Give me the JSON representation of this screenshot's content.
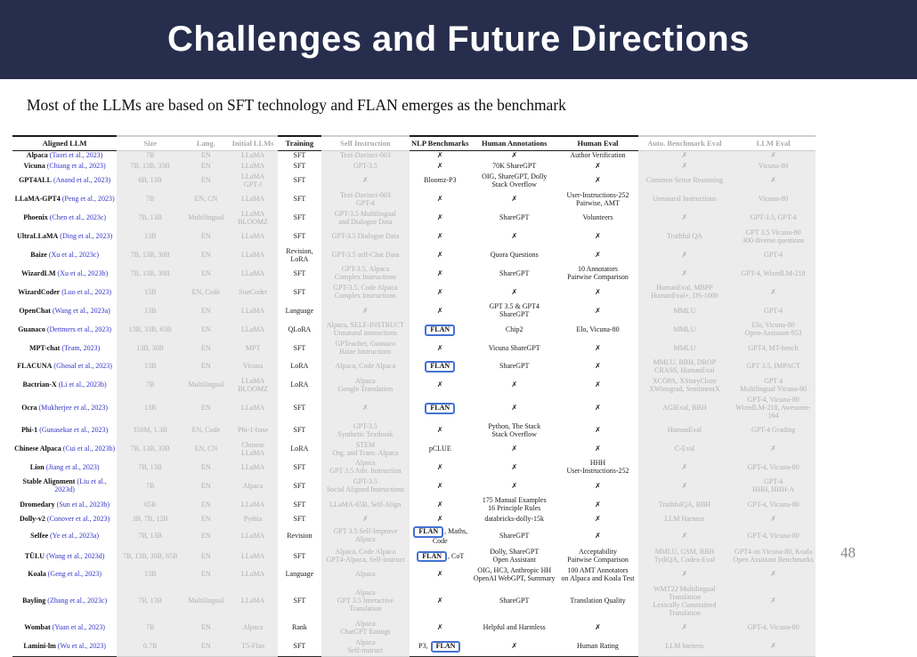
{
  "slide": {
    "title": "Challenges and Future Directions",
    "subtitle": "Most of the LLMs are based on SFT technology and FLAN emerges as the benchmark",
    "page_number": "48",
    "colors": {
      "banner_background": "#272E4D",
      "title_text": "#FFFFFF",
      "citation_blue": "#3434C8",
      "flan_highlight_blue": "#4472D4",
      "dimmed_column_background": "#ECECEC",
      "dimmed_text": "#B0B0B4"
    }
  },
  "table": {
    "columns": [
      {
        "key": "model",
        "label": "Aligned LLM",
        "dim": false,
        "width": "13%"
      },
      {
        "key": "size",
        "label": "Size",
        "dim": true,
        "width": "8.3%"
      },
      {
        "key": "lang",
        "label": "Lang.",
        "dim": true,
        "width": "5.6%"
      },
      {
        "key": "initial",
        "label": "Initial LLMs",
        "dim": true,
        "width": "6.1%"
      },
      {
        "key": "training",
        "label": "Training",
        "dim": false,
        "width": "5.5%"
      },
      {
        "key": "self_instruction",
        "label": "Self Instruction",
        "dim": true,
        "width": "10.9%"
      },
      {
        "key": "nlp",
        "label": "NLP Benchmarks",
        "dim": false,
        "width": "7.7%"
      },
      {
        "key": "human_annotations",
        "label": "Human Annotations",
        "dim": false,
        "width": "10.8%"
      },
      {
        "key": "human_eval",
        "label": "Human Eval",
        "dim": false,
        "width": "10%"
      },
      {
        "key": "auto_benchmark",
        "label": "Auto. Benchmark Eval",
        "dim": true,
        "width": "11.6%"
      },
      {
        "key": "llm_eval",
        "label": "LLM Eval",
        "dim": true,
        "width": "10.5%"
      }
    ],
    "rows": [
      {
        "model": "Alpaca",
        "citation": "(Taori et al., 2023)",
        "size": "7B",
        "lang": "EN",
        "initial": "LLaMA",
        "training": "SFT",
        "self_instruction": "Text-Davinci-003",
        "nlp": {
          "text": "✗"
        },
        "human_annotations": "✗",
        "human_eval": "Author Verification",
        "auto_benchmark": "✗",
        "llm_eval": "✗"
      },
      {
        "model": "Vicuna",
        "citation": "(Chiang et al., 2023)",
        "size": "7B, 13B, 33B",
        "lang": "EN",
        "initial": "LLaMA",
        "training": "SFT",
        "self_instruction": "GPT-3.5",
        "nlp": {
          "text": "✗"
        },
        "human_annotations": "70K ShareGPT",
        "human_eval": "✗",
        "auto_benchmark": "✗",
        "llm_eval": "Vicuna-80"
      },
      {
        "model": "GPT4ALL",
        "citation": "(Anand et al., 2023)",
        "size": "6B, 13B",
        "lang": "EN",
        "initial": "LLaMA\nGPT-J",
        "training": "SFT",
        "self_instruction": "✗",
        "nlp": {
          "text": "Bloomz-P3"
        },
        "human_annotations": "OIG, ShareGPT, Dolly\nStack Overflow",
        "human_eval": "✗",
        "auto_benchmark": "Common Sense Reasoning",
        "llm_eval": "✗"
      },
      {
        "model": "LLaMA-GPT4",
        "citation": "(Peng et al., 2023)",
        "size": "7B",
        "lang": "EN, CN",
        "initial": "LLaMA",
        "training": "SFT",
        "self_instruction": "Text-Davinci-003\nGPT-4",
        "nlp": {
          "text": "✗"
        },
        "human_annotations": "✗",
        "human_eval": "User-Instructions-252\nPairwise, AMT",
        "auto_benchmark": "Unnatural Instructions",
        "llm_eval": "Vicuna-80"
      },
      {
        "model": "Phoenix",
        "citation": "(Chen et al., 2023c)",
        "size": "7B, 13B",
        "lang": "Multilingual",
        "initial": "LLaMA\nBLOOMZ",
        "training": "SFT",
        "self_instruction": "GPT-3.5 Multilingual\nand Dialogue Data",
        "nlp": {
          "text": "✗"
        },
        "human_annotations": "ShareGPT",
        "human_eval": "Volunteers",
        "auto_benchmark": "✗",
        "llm_eval": "GPT-3.5, GPT-4"
      },
      {
        "model": "UltraLLaMA",
        "citation": "(Ding et al., 2023)",
        "size": "13B",
        "lang": "EN",
        "initial": "LLaMA",
        "training": "SFT",
        "self_instruction": "GPT-3.5 Dialogue Data",
        "nlp": {
          "text": "✗"
        },
        "human_annotations": "✗",
        "human_eval": "✗",
        "auto_benchmark": "Truthful QA",
        "llm_eval": "GPT 3.5 Vicuna-80\n300 diverse questions"
      },
      {
        "model": "Baize",
        "citation": "(Xu et al., 2023c)",
        "size": "7B, 13B, 30B",
        "lang": "EN",
        "initial": "LLaMA",
        "training": "Revision, LoRA",
        "self_instruction": "GPT-3.5 self-Chat Data",
        "nlp": {
          "text": "✗"
        },
        "human_annotations": "Quora Questions",
        "human_eval": "✗",
        "auto_benchmark": "✗",
        "llm_eval": "GPT-4"
      },
      {
        "model": "WizardLM",
        "citation": "(Xu et al., 2023b)",
        "size": "7B, 13B, 30B",
        "lang": "EN",
        "initial": "LLaMA",
        "training": "SFT",
        "self_instruction": "GPT-3.5, Alpaca\nComplex Instructions",
        "nlp": {
          "text": "✗"
        },
        "human_annotations": "ShareGPT",
        "human_eval": "10 Annotators\nPairwise Comparison",
        "auto_benchmark": "✗",
        "llm_eval": "GPT-4, WizedLM-218"
      },
      {
        "model": "WizardCoder",
        "citation": "(Luo et al., 2023)",
        "size": "15B",
        "lang": "EN, Code",
        "initial": "StarCoder",
        "training": "SFT",
        "self_instruction": "GPT-3.5, Code Alpaca\nComplex Instructions",
        "nlp": {
          "text": "✗"
        },
        "human_annotations": "✗",
        "human_eval": "✗",
        "auto_benchmark": "HumanEval, MBPP\nHumanEval+, DS-1000",
        "llm_eval": "✗"
      },
      {
        "model": "OpenChat",
        "citation": "(Wang et al., 2023a)",
        "size": "13B",
        "lang": "EN",
        "initial": "LLaMA",
        "training": "Language",
        "self_instruction": "✗",
        "nlp": {
          "text": "✗"
        },
        "human_annotations": "GPT 3.5 & GPT4\nShareGPT",
        "human_eval": "✗",
        "auto_benchmark": "MMLU",
        "llm_eval": "GPT-4"
      },
      {
        "model": "Guanaco",
        "citation": "(Dettmers et al., 2023)",
        "size": "13B, 33B, 65B",
        "lang": "EN",
        "initial": "LLaMA",
        "training": "QLoRA",
        "self_instruction": "Alpaca, SELF-INSTRUCT\nUnnatural instructions",
        "nlp": {
          "text": "FLAN",
          "box": "FLAN"
        },
        "human_annotations": "Chip2",
        "human_eval": "Elo, Vicuna-80",
        "auto_benchmark": "MMLU",
        "llm_eval": "Elo, Vicuna-80\nOpen-Assistant-953"
      },
      {
        "model": "MPT-chat",
        "citation": "(Team, 2023)",
        "size": "13B, 30B",
        "lang": "EN",
        "initial": "MPT",
        "training": "SFT",
        "self_instruction": "GPTeacher, Guanaco\nBaize Instructions",
        "nlp": {
          "text": "✗"
        },
        "human_annotations": "Vicuna ShareGPT",
        "human_eval": "✗",
        "auto_benchmark": "MMLU",
        "llm_eval": "GPT4, MT-bench"
      },
      {
        "model": "FLACUNA",
        "citation": "(Ghosal et al., 2023)",
        "size": "13B",
        "lang": "EN",
        "initial": "Vicuna",
        "training": "LoRA",
        "self_instruction": "Alpaca, Code Alpaca",
        "nlp": {
          "text": "FLAN",
          "box": "FLAN"
        },
        "human_annotations": "ShareGPT",
        "human_eval": "✗",
        "auto_benchmark": "MMLU, BBH, DROP\nCRASS, HumanEval",
        "llm_eval": "GPT 3.5, IMPACT"
      },
      {
        "model": "Bactrian-X",
        "citation": "(Li et al., 2023b)",
        "size": "7B",
        "lang": "Multilingual",
        "initial": "LLaMA\nBLOOMZ",
        "training": "LoRA",
        "self_instruction": "Alpaca\nGoogle Translation",
        "nlp": {
          "text": "✗"
        },
        "human_annotations": "✗",
        "human_eval": "✗",
        "auto_benchmark": "XCOPA, XStoryCloze\nXWinograd, SentimentX",
        "llm_eval": "GPT 4\nMultilingual Vicuna-80"
      },
      {
        "model": "Ocra",
        "citation": "(Mukherjee et al., 2023)",
        "size": "13B",
        "lang": "EN",
        "initial": "LLaMA",
        "training": "SFT",
        "self_instruction": "✗",
        "nlp": {
          "text": "FLAN",
          "box": "FLAN"
        },
        "human_annotations": "✗",
        "human_eval": "✗",
        "auto_benchmark": "AGIEval, BBH",
        "llm_eval": "GPT-4, Vicuna-80\nWizedLM-218, Awesome-164"
      },
      {
        "model": "Phi-1",
        "citation": "(Gunasekar et al., 2023)",
        "size": "350M, 1.3B",
        "lang": "EN, Code",
        "initial": "Phi-1-base",
        "training": "SFT",
        "self_instruction": "GPT-3.5\nSynthetic Textbook",
        "nlp": {
          "text": "✗"
        },
        "human_annotations": "Python, The Stack\nStack Overflow",
        "human_eval": "✗",
        "auto_benchmark": "HumanEval",
        "llm_eval": "GPT-4 Grading"
      },
      {
        "model": "Chinese Alpaca",
        "citation": "(Cui et al., 2023b)",
        "size": "7B, 13B, 33B",
        "lang": "EN, CN",
        "initial": "Chinese LLaMA",
        "training": "LoRA",
        "self_instruction": "STEM\nOrg. and Trans. Alpaca",
        "nlp": {
          "text": "pCLUE"
        },
        "human_annotations": "✗",
        "human_eval": "✗",
        "auto_benchmark": "C-Eval",
        "llm_eval": "✗"
      },
      {
        "model": "Lion",
        "citation": "(Jiang et al., 2023)",
        "size": "7B, 13B",
        "lang": "EN",
        "initial": "LLaMA",
        "training": "SFT",
        "self_instruction": "Alpaca\nGPT 3.5 Adv. Instruction",
        "nlp": {
          "text": "✗"
        },
        "human_annotations": "✗",
        "human_eval": "HHH\nUser-Instructions-252",
        "auto_benchmark": "✗",
        "llm_eval": "GPT-4, Vicuna-80"
      },
      {
        "model": "Stable Alignment",
        "citation": "(Liu et al., 2023d)",
        "size": "7B",
        "lang": "EN",
        "initial": "Alpaca",
        "training": "SFT",
        "self_instruction": "GPT-3.5\nSocial Aligned Instructions",
        "nlp": {
          "text": "✗"
        },
        "human_annotations": "✗",
        "human_eval": "✗",
        "auto_benchmark": "✗",
        "llm_eval": "GPT-4\nHHH, HHH-A"
      },
      {
        "model": "Dromedary",
        "citation": "(Sun et al., 2023b)",
        "size": "65B",
        "lang": "EN",
        "initial": "LLaMA",
        "training": "SFT",
        "self_instruction": "LLaMA-65B, Self-Align",
        "nlp": {
          "text": "✗"
        },
        "human_annotations": "175 Manual Examples\n16 Principle Rules",
        "human_eval": "✗",
        "auto_benchmark": "TruthfulQA, BBH",
        "llm_eval": "GPT-4, Vicuna-80"
      },
      {
        "model": "Dolly-v2",
        "citation": "(Conover et al., 2023)",
        "size": "3B, 7B, 12B",
        "lang": "EN",
        "initial": "Pythia",
        "training": "SFT",
        "self_instruction": "✗",
        "nlp": {
          "text": "✗"
        },
        "human_annotations": "databricks-dolly-15k",
        "human_eval": "✗",
        "auto_benchmark": "LLM Harness",
        "llm_eval": "✗"
      },
      {
        "model": "Selfee",
        "citation": "(Ye et al., 2023a)",
        "size": "7B, 13B",
        "lang": "EN",
        "initial": "LLaMA",
        "training": "Revision",
        "self_instruction": "GPT 3.5 Self-Improve\nAlpaca",
        "nlp": {
          "text": "FLAN, Maths, Code",
          "box": "FLAN"
        },
        "human_annotations": "ShareGPT",
        "human_eval": "✗",
        "auto_benchmark": "✗",
        "llm_eval": "GPT-4, Vicuna-80"
      },
      {
        "model": "TÜLU",
        "citation": "(Wang et al., 2023d)",
        "size": "7B, 13B, 30B, 65B",
        "lang": "EN",
        "initial": "LLaMA",
        "training": "SFT",
        "self_instruction": "Alpaca, Code Alpaca\nGPT4-Alpaca, Self-instruct",
        "nlp": {
          "text": "FLAN, CoT",
          "box": "FLAN"
        },
        "human_annotations": "Dolly, ShareGPT\nOpen Assistant",
        "human_eval": "Acceptability\nPairwise Comparison",
        "auto_benchmark": "MMLU, GSM, BBH\nTydiQA, Codex-Eval",
        "llm_eval": "GPT4 on Vicuna-80, Koala\nOpen Assistant Benchmarks"
      },
      {
        "model": "Koala",
        "citation": "(Geng et al., 2023)",
        "size": "13B",
        "lang": "EN",
        "initial": "LLaMA",
        "training": "Language",
        "self_instruction": "Alpaca",
        "nlp": {
          "text": "✗"
        },
        "human_annotations": "OIG, HC3, Anthropic HH\nOpenAI WebGPT, Summary",
        "human_eval": "100 AMT Annotators\non Alpaca and Koala Test",
        "auto_benchmark": "✗",
        "llm_eval": "✗"
      },
      {
        "model": "Bayling",
        "citation": "(Zhang et al., 2023c)",
        "size": "7B, 13B",
        "lang": "Multilingual",
        "initial": "LLaMA",
        "training": "SFT",
        "self_instruction": "Alpaca\nGPT 3.5 Interactive Translation",
        "nlp": {
          "text": "✗"
        },
        "human_annotations": "ShareGPT",
        "human_eval": "Translation Quality",
        "auto_benchmark": "WMT22 Multilingual Translation\nLexically Constrained Translation",
        "llm_eval": "✗"
      },
      {
        "model": "Wombat",
        "citation": "(Yuan et al., 2023)",
        "size": "7B",
        "lang": "EN",
        "initial": "Alpaca",
        "training": "Rank",
        "self_instruction": "Alpaca\nChatGPT Ratings",
        "nlp": {
          "text": "✗"
        },
        "human_annotations": "Helpful and Harmless",
        "human_eval": "✗",
        "auto_benchmark": "✗",
        "llm_eval": "GPT-4, Vicuna-80"
      },
      {
        "model": "Lamini-lm",
        "citation": "(Wu et al., 2023)",
        "size": "0.7B",
        "lang": "EN",
        "initial": "T5-Flan",
        "training": "SFT",
        "self_instruction": "Alpaca\nSelf-instruct",
        "nlp": {
          "text": "P3, FLAN",
          "box": "FLAN"
        },
        "human_annotations": "✗",
        "human_eval": "Human Rating",
        "auto_benchmark": "LLM harness",
        "llm_eval": "✗"
      }
    ]
  }
}
